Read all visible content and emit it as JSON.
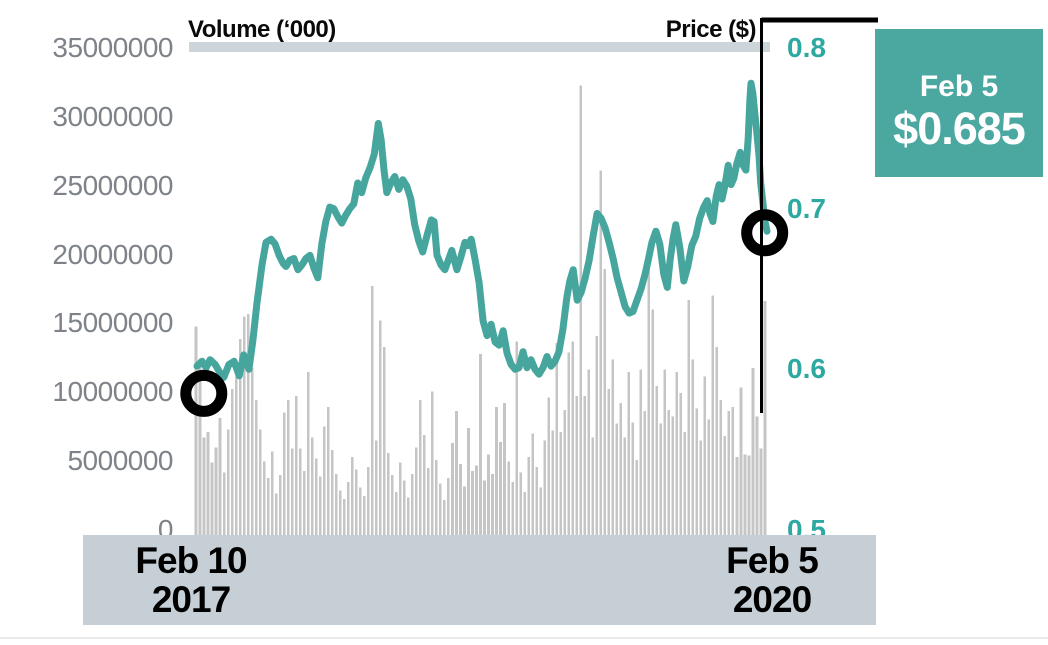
{
  "chart": {
    "left_axis_title": "Volume (‘000)",
    "right_axis_title": "Price ($)",
    "callout": {
      "date": "Feb 5",
      "price": "$0.685"
    },
    "x_axis": {
      "start_label_line1": "Feb 10",
      "start_label_line2": "2017",
      "end_label_line1": "Feb 5",
      "end_label_line2": "2020"
    }
  },
  "colors": {
    "accent_teal": "#46a69e",
    "tick_teal": "#2da9a2",
    "callout_teal": "#4ba8a1",
    "volume_bar_gray": "#c5c5c5",
    "band_blue_gray": "#c5cfd5",
    "header_strip_gray": "#ccd5da",
    "axis_text_gray": "#7e838a",
    "marker_black": "#000000"
  },
  "chart_data": {
    "type": "combo",
    "title": "",
    "x_range": [
      "Feb 10 2017",
      "Feb 5 2020"
    ],
    "axes": {
      "left": {
        "label": "Volume (‘000)",
        "min": 0,
        "max": 35000000,
        "ticks": [
          "35000000",
          "30000000",
          "25000000",
          "20000000",
          "15000000",
          "10000000",
          "5000000",
          "0"
        ]
      },
      "right": {
        "label": "Price ($)",
        "min": 0.5,
        "max": 0.8,
        "ticks": [
          "0.8",
          "0.7",
          "0.6",
          "0.5"
        ]
      }
    },
    "series": [
      {
        "name": "Volume (‘000)",
        "type": "bar",
        "axis": "left",
        "color": "#c5c5c5",
        "values": [
          15000000,
          12700000,
          7000000,
          7400000,
          5200000,
          6300000,
          8400000,
          4500000,
          7600000,
          10500000,
          11400000,
          14100000,
          15700000,
          15900000,
          12000000,
          9700000,
          7600000,
          5300000,
          4100000,
          6000000,
          3000000,
          4300000,
          8800000,
          9700000,
          6200000,
          10000000,
          6200000,
          4600000,
          11700000,
          7000000,
          5500000,
          4200000,
          7800000,
          9200000,
          6100000,
          4400000,
          3200000,
          2600000,
          3800000,
          5600000,
          4700000,
          3400000,
          2800000,
          4900000,
          17900000,
          6800000,
          15400000,
          13500000,
          5900000,
          4300000,
          3100000,
          5200000,
          3900000,
          2700000,
          4400000,
          6300000,
          9700000,
          7200000,
          4800000,
          10300000,
          5400000,
          3700000,
          2500000,
          4100000,
          6600000,
          8900000,
          5100000,
          3500000,
          7700000,
          4600000,
          5000000,
          13000000,
          3900000,
          5800000,
          4400000,
          9200000,
          6700000,
          9500000,
          5300000,
          3800000,
          13900000,
          4500000,
          3100000,
          5600000,
          7300000,
          4900000,
          3400000,
          6800000,
          9900000,
          7500000,
          13800000,
          7400000,
          9000000,
          13100000,
          13900000,
          10000000,
          32300000,
          10000000,
          11900000,
          7000000,
          14300000,
          26200000,
          19100000,
          10500000,
          12600000,
          8000000,
          9500000,
          7000000,
          11700000,
          8100000,
          5400000,
          11900000,
          8900000,
          19300000,
          16200000,
          10700000,
          8000000,
          11900000,
          9000000,
          8500000,
          11700000,
          10200000,
          7400000,
          16900000,
          12600000,
          9100000,
          6800000,
          11400000,
          8300000,
          17200000,
          13500000,
          9700000,
          7100000,
          8900000,
          9200000,
          5600000,
          10600000,
          5800000,
          5700000,
          12000000,
          8500000,
          6200000,
          16800000
        ]
      },
      {
        "name": "Price ($)",
        "type": "line",
        "axis": "right",
        "color": "#46a69e",
        "points": [
          [
            0.0,
            0.602
          ],
          [
            0.009,
            0.605
          ],
          [
            0.016,
            0.601
          ],
          [
            0.023,
            0.606
          ],
          [
            0.032,
            0.603
          ],
          [
            0.04,
            0.598
          ],
          [
            0.047,
            0.595
          ],
          [
            0.056,
            0.603
          ],
          [
            0.065,
            0.605
          ],
          [
            0.074,
            0.596
          ],
          [
            0.082,
            0.609
          ],
          [
            0.091,
            0.6
          ],
          [
            0.098,
            0.618
          ],
          [
            0.105,
            0.641
          ],
          [
            0.114,
            0.665
          ],
          [
            0.121,
            0.679
          ],
          [
            0.13,
            0.681
          ],
          [
            0.137,
            0.678
          ],
          [
            0.144,
            0.671
          ],
          [
            0.151,
            0.666
          ],
          [
            0.156,
            0.664
          ],
          [
            0.163,
            0.668
          ],
          [
            0.17,
            0.669
          ],
          [
            0.177,
            0.662
          ],
          [
            0.184,
            0.665
          ],
          [
            0.191,
            0.669
          ],
          [
            0.198,
            0.671
          ],
          [
            0.205,
            0.663
          ],
          [
            0.212,
            0.657
          ],
          [
            0.219,
            0.678
          ],
          [
            0.226,
            0.692
          ],
          [
            0.233,
            0.701
          ],
          [
            0.24,
            0.7
          ],
          [
            0.247,
            0.695
          ],
          [
            0.254,
            0.691
          ],
          [
            0.261,
            0.696
          ],
          [
            0.268,
            0.7
          ],
          [
            0.275,
            0.703
          ],
          [
            0.282,
            0.716
          ],
          [
            0.289,
            0.71
          ],
          [
            0.296,
            0.719
          ],
          [
            0.304,
            0.726
          ],
          [
            0.311,
            0.734
          ],
          [
            0.318,
            0.753
          ],
          [
            0.323,
            0.743
          ],
          [
            0.328,
            0.724
          ],
          [
            0.333,
            0.71
          ],
          [
            0.34,
            0.716
          ],
          [
            0.347,
            0.72
          ],
          [
            0.354,
            0.712
          ],
          [
            0.361,
            0.718
          ],
          [
            0.368,
            0.714
          ],
          [
            0.375,
            0.706
          ],
          [
            0.382,
            0.69
          ],
          [
            0.389,
            0.68
          ],
          [
            0.396,
            0.673
          ],
          [
            0.404,
            0.684
          ],
          [
            0.411,
            0.693
          ],
          [
            0.416,
            0.692
          ],
          [
            0.421,
            0.671
          ],
          [
            0.428,
            0.665
          ],
          [
            0.435,
            0.662
          ],
          [
            0.442,
            0.669
          ],
          [
            0.447,
            0.674
          ],
          [
            0.456,
            0.662
          ],
          [
            0.463,
            0.67
          ],
          [
            0.47,
            0.679
          ],
          [
            0.475,
            0.677
          ],
          [
            0.481,
            0.681
          ],
          [
            0.488,
            0.668
          ],
          [
            0.495,
            0.654
          ],
          [
            0.502,
            0.63
          ],
          [
            0.509,
            0.621
          ],
          [
            0.516,
            0.628
          ],
          [
            0.523,
            0.617
          ],
          [
            0.53,
            0.615
          ],
          [
            0.537,
            0.624
          ],
          [
            0.544,
            0.61
          ],
          [
            0.551,
            0.603
          ],
          [
            0.558,
            0.6
          ],
          [
            0.565,
            0.601
          ],
          [
            0.572,
            0.611
          ],
          [
            0.579,
            0.601
          ],
          [
            0.586,
            0.606
          ],
          [
            0.593,
            0.6
          ],
          [
            0.6,
            0.597
          ],
          [
            0.607,
            0.601
          ],
          [
            0.614,
            0.608
          ],
          [
            0.621,
            0.602
          ],
          [
            0.628,
            0.605
          ],
          [
            0.635,
            0.611
          ],
          [
            0.642,
            0.625
          ],
          [
            0.649,
            0.645
          ],
          [
            0.654,
            0.655
          ],
          [
            0.66,
            0.662
          ],
          [
            0.667,
            0.643
          ],
          [
            0.674,
            0.648
          ],
          [
            0.681,
            0.657
          ],
          [
            0.688,
            0.668
          ],
          [
            0.695,
            0.683
          ],
          [
            0.702,
            0.697
          ],
          [
            0.709,
            0.694
          ],
          [
            0.716,
            0.688
          ],
          [
            0.723,
            0.679
          ],
          [
            0.73,
            0.669
          ],
          [
            0.737,
            0.657
          ],
          [
            0.744,
            0.648
          ],
          [
            0.751,
            0.639
          ],
          [
            0.758,
            0.635
          ],
          [
            0.765,
            0.636
          ],
          [
            0.772,
            0.643
          ],
          [
            0.779,
            0.65
          ],
          [
            0.786,
            0.659
          ],
          [
            0.791,
            0.667
          ],
          [
            0.798,
            0.679
          ],
          [
            0.805,
            0.686
          ],
          [
            0.812,
            0.678
          ],
          [
            0.819,
            0.659
          ],
          [
            0.825,
            0.651
          ],
          [
            0.83,
            0.668
          ],
          [
            0.835,
            0.681
          ],
          [
            0.84,
            0.69
          ],
          [
            0.847,
            0.676
          ],
          [
            0.854,
            0.655
          ],
          [
            0.861,
            0.664
          ],
          [
            0.868,
            0.677
          ],
          [
            0.875,
            0.683
          ],
          [
            0.882,
            0.694
          ],
          [
            0.889,
            0.701
          ],
          [
            0.895,
            0.705
          ],
          [
            0.9,
            0.697
          ],
          [
            0.905,
            0.692
          ],
          [
            0.911,
            0.708
          ],
          [
            0.916,
            0.715
          ],
          [
            0.921,
            0.706
          ],
          [
            0.926,
            0.714
          ],
          [
            0.932,
            0.727
          ],
          [
            0.937,
            0.715
          ],
          [
            0.942,
            0.719
          ],
          [
            0.947,
            0.728
          ],
          [
            0.953,
            0.735
          ],
          [
            0.958,
            0.727
          ],
          [
            0.963,
            0.724
          ],
          [
            0.967,
            0.744
          ],
          [
            0.97,
            0.768
          ],
          [
            0.972,
            0.778
          ],
          [
            0.975,
            0.772
          ],
          [
            0.979,
            0.758
          ],
          [
            0.982,
            0.748
          ],
          [
            0.986,
            0.733
          ],
          [
            0.989,
            0.716
          ],
          [
            0.993,
            0.703
          ],
          [
            0.996,
            0.693
          ],
          [
            1.0,
            0.686
          ]
        ]
      }
    ],
    "markers": [
      {
        "name": "start-marker",
        "t": 0.012,
        "price": 0.585
      },
      {
        "name": "end-marker",
        "t": 0.996,
        "price": 0.685
      }
    ],
    "annotation": {
      "date": "Feb 5",
      "value": "$0.685"
    },
    "legend_position": "none",
    "grid": false
  }
}
